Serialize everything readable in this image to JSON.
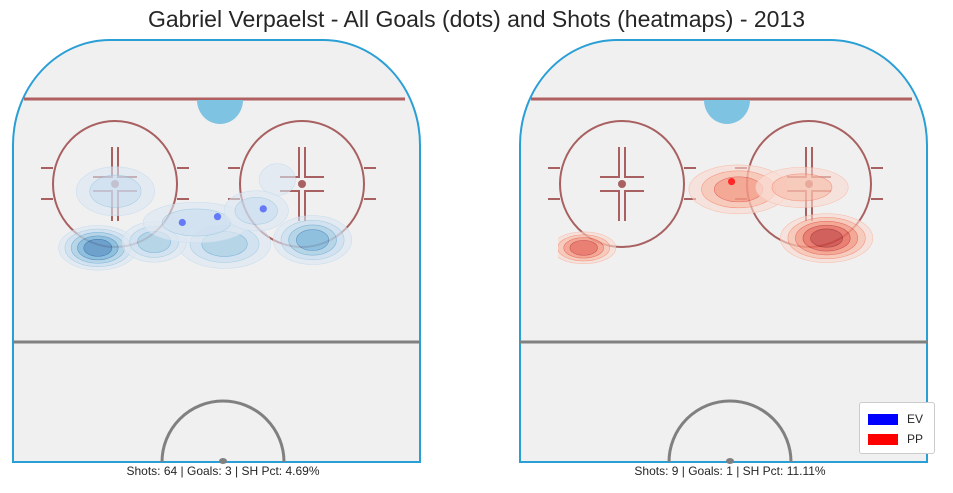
{
  "figure": {
    "title": "Gabriel Verpaelst - All Goals (dots) and Shots (heatmaps) - 2013"
  },
  "colors": {
    "ice": "#f0f0f0",
    "boards": "#2a9fd6",
    "goal_line": "#b06060",
    "circles": "#a86060",
    "blue_line": "#808080",
    "crease": "#7ec3e2",
    "EV": "#0000ff",
    "PP": "#ff0000"
  },
  "legend": {
    "items": [
      {
        "label": "EV",
        "color": "#0000ff"
      },
      {
        "label": "PP",
        "color": "#ff0000"
      }
    ]
  },
  "chart_data": [
    {
      "type": "heatmap",
      "panel": "EV",
      "caption": "Shots: 64 | Goals: 3 | SH Pct: 4.69%",
      "stats": {
        "shots": 64,
        "goals": 3,
        "sh_pct": 4.69
      },
      "goals": [
        {
          "x": 0.41,
          "y": 0.5
        },
        {
          "x": 0.51,
          "y": 0.47
        },
        {
          "x": 0.64,
          "y": 0.43
        }
      ],
      "shot_density": [
        {
          "x": 0.17,
          "y": 0.63,
          "level": 5,
          "rx": 0.1,
          "ry": 0.045
        },
        {
          "x": 0.78,
          "y": 0.59,
          "level": 4,
          "rx": 0.1,
          "ry": 0.05
        },
        {
          "x": 0.53,
          "y": 0.61,
          "level": 3,
          "rx": 0.12,
          "ry": 0.05
        },
        {
          "x": 0.33,
          "y": 0.6,
          "level": 3,
          "rx": 0.08,
          "ry": 0.04
        },
        {
          "x": 0.22,
          "y": 0.34,
          "level": 2,
          "rx": 0.1,
          "ry": 0.05
        },
        {
          "x": 0.45,
          "y": 0.5,
          "level": 2,
          "rx": 0.14,
          "ry": 0.04
        },
        {
          "x": 0.68,
          "y": 0.28,
          "level": 1,
          "rx": 0.04,
          "ry": 0.03
        },
        {
          "x": 0.62,
          "y": 0.44,
          "level": 2,
          "rx": 0.08,
          "ry": 0.04
        }
      ]
    },
    {
      "type": "heatmap",
      "panel": "PP",
      "caption": "Shots: 9 | Goals: 1 | SH Pct: 11.11%",
      "stats": {
        "shots": 9,
        "goals": 1,
        "sh_pct": 11.11
      },
      "goals": [
        {
          "x": 0.53,
          "y": 0.29
        }
      ],
      "shot_density": [
        {
          "x": 0.8,
          "y": 0.58,
          "level": 5,
          "rx": 0.12,
          "ry": 0.05
        },
        {
          "x": 0.11,
          "y": 0.63,
          "level": 4,
          "rx": 0.08,
          "ry": 0.03
        },
        {
          "x": 0.55,
          "y": 0.33,
          "level": 3,
          "rx": 0.13,
          "ry": 0.05
        },
        {
          "x": 0.73,
          "y": 0.32,
          "level": 2,
          "rx": 0.12,
          "ry": 0.04
        }
      ]
    }
  ]
}
